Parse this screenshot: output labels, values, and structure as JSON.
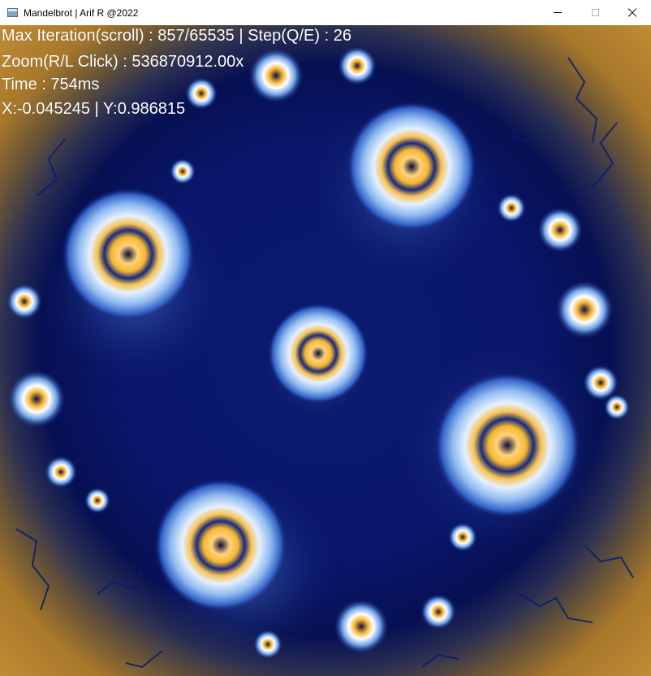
{
  "window": {
    "title": "Mandelbrot | Arif R @2022",
    "app_icon": "window-app-icon",
    "controls": {
      "minimize_icon": "minimize-icon",
      "maximize_icon": "maximize-icon",
      "close_icon": "close-icon"
    }
  },
  "hud": {
    "iteration_line": "Max Iteration(scroll) : 857/65535  |  Step(Q/E) : 26",
    "zoom_line": "Zoom(R/L Click) : 536870912.00x",
    "time_line": "Time : 754ms",
    "coords_line": "X:-0.045245  |  Y:0.986815"
  },
  "colors": {
    "deep_blue": "#0a166a",
    "light_blue": "#7fb0ee",
    "pale": "#dce9fb",
    "gold": "#f5b633",
    "brown": "#b08030",
    "hud_text": "#ffffff"
  }
}
